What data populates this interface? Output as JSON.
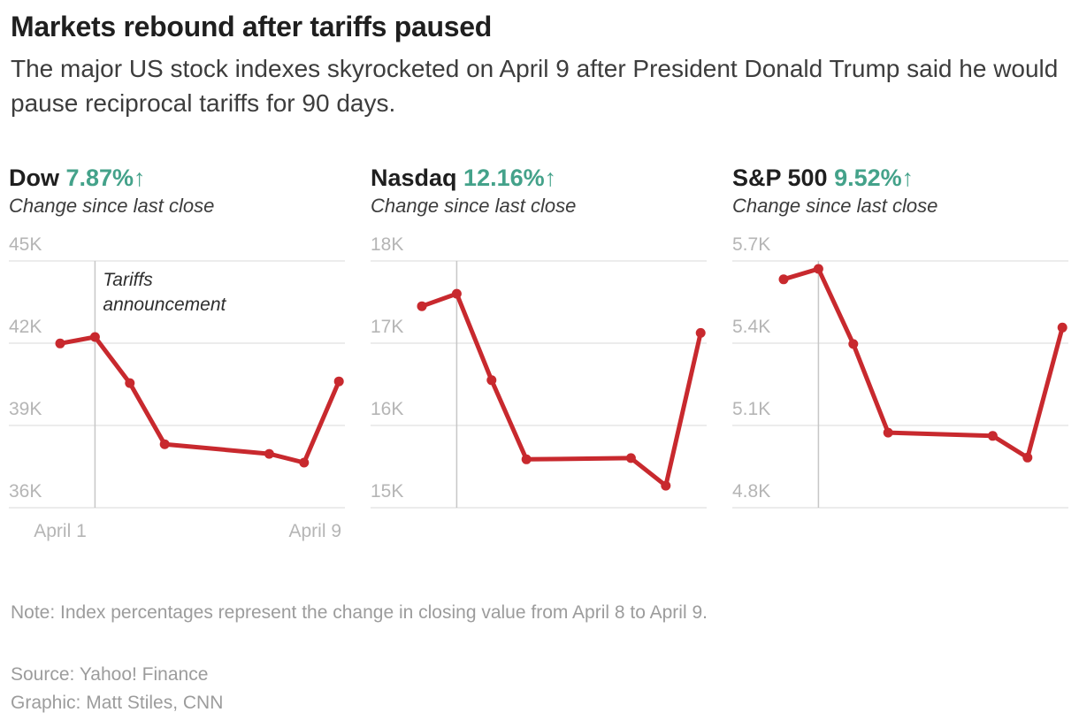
{
  "header": {
    "title": "Markets rebound after tariffs paused",
    "subtitle": "The major US stock indexes skyrocketed on April 9 after President Donald Trump said he would pause reciprocal tariffs for 90 days."
  },
  "footer": {
    "note": "Note: Index percentages represent the change in closing value from April 8 to April 9.",
    "source": "Source: Yahoo! Finance",
    "credit": "Graphic: Matt Stiles, CNN"
  },
  "colors": {
    "line_red": "#c8292e",
    "accent_teal": "#44a28a",
    "grid": "#e6e6e6",
    "event_line": "#c7c7c7",
    "tick_text": "#b5b5b5",
    "axis_date_text": "#b5b5b5",
    "annotation_text": "#2e2e2e",
    "muted_text": "#9c9c9c"
  },
  "chart_data": [
    {
      "type": "line",
      "name": "Dow",
      "change_percent": "7.87%",
      "arrow": "↑",
      "subtitle": "Change since last close",
      "x": [
        "April 1",
        "April 2",
        "April 3",
        "April 4",
        "April 7",
        "April 8",
        "April 9"
      ],
      "x_days": [
        1,
        2,
        3,
        4,
        7,
        8,
        9
      ],
      "values": [
        41990,
        42225,
        40546,
        38315,
        37966,
        37646,
        40608
      ],
      "yticks": [
        {
          "label": "45K",
          "value": 45000
        },
        {
          "label": "42K",
          "value": 42000
        },
        {
          "label": "39K",
          "value": 39000
        },
        {
          "label": "36K",
          "value": 36000
        }
      ],
      "ylim": [
        36000,
        45000
      ],
      "xlim_days": [
        1,
        9
      ],
      "grid": true,
      "legend": "none",
      "event": {
        "day": 2,
        "label_lines": [
          "Tariffs",
          "announcement"
        ]
      },
      "x_axis_labels": [
        {
          "label": "April 1",
          "day": 1,
          "anchor": "middle"
        },
        {
          "label": "April 9",
          "day": 9,
          "anchor": "end"
        }
      ]
    },
    {
      "type": "line",
      "name": "Nasdaq",
      "change_percent": "12.16%",
      "arrow": "↑",
      "subtitle": "Change since last close",
      "x": [
        "April 1",
        "April 2",
        "April 3",
        "April 4",
        "April 7",
        "April 8",
        "April 9"
      ],
      "x_days": [
        1,
        2,
        3,
        4,
        7,
        8,
        9
      ],
      "values": [
        17450,
        17601,
        16551,
        15588,
        15603,
        15268,
        17125
      ],
      "yticks": [
        {
          "label": "18K",
          "value": 18000
        },
        {
          "label": "17K",
          "value": 17000
        },
        {
          "label": "16K",
          "value": 16000
        },
        {
          "label": "15K",
          "value": 15000
        }
      ],
      "ylim": [
        15000,
        18000
      ],
      "xlim_days": [
        1,
        9
      ],
      "grid": true,
      "legend": "none",
      "event": {
        "day": 2,
        "label_lines": []
      },
      "x_axis_labels": []
    },
    {
      "type": "line",
      "name": "S&P 500",
      "change_percent": "9.52%",
      "arrow": "↑",
      "subtitle": "Change since last close",
      "x": [
        "April 1",
        "April 2",
        "April 3",
        "April 4",
        "April 7",
        "April 8",
        "April 9"
      ],
      "x_days": [
        1,
        2,
        3,
        4,
        7,
        8,
        9
      ],
      "values": [
        5633,
        5671,
        5397,
        5074,
        5062,
        4983,
        5457
      ],
      "yticks": [
        {
          "label": "5.7K",
          "value": 5700
        },
        {
          "label": "5.4K",
          "value": 5400
        },
        {
          "label": "5.1K",
          "value": 5100
        },
        {
          "label": "4.8K",
          "value": 4800
        }
      ],
      "ylim": [
        4800,
        5700
      ],
      "xlim_days": [
        1,
        9
      ],
      "grid": true,
      "legend": "none",
      "event": {
        "day": 2,
        "label_lines": []
      },
      "x_axis_labels": []
    }
  ]
}
